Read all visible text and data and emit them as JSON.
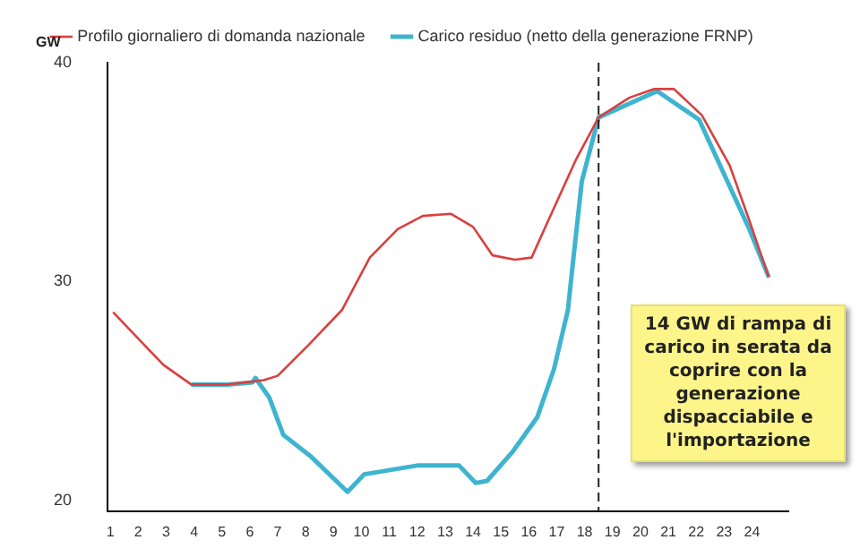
{
  "chart_data": {
    "type": "line",
    "ylabel": "GW",
    "x": [
      1.1,
      2.0,
      2.9,
      3.9,
      5.2,
      6.5,
      7.0,
      8.1,
      9.3,
      10.3,
      11.3,
      12.2,
      13.2,
      14.0,
      14.7,
      15.5,
      16.1,
      16.7,
      17.7,
      18.5,
      19.6,
      20.5,
      21.2,
      22.2,
      23.2,
      23.9,
      24.6
    ],
    "series": [
      {
        "name": "Profilo giornaliero di domanda nazionale",
        "color": "#d9403f",
        "values": [
          28.6,
          27.4,
          26.2,
          25.3,
          25.3,
          25.5,
          25.7,
          27.1,
          28.7,
          31.1,
          32.4,
          33.0,
          33.1,
          32.5,
          31.2,
          31.0,
          31.1,
          32.8,
          35.6,
          37.5,
          38.4,
          38.8,
          38.8,
          37.6,
          35.3,
          32.8,
          30.2
        ]
      },
      {
        "name": "Carico residuo (netto della generazione FRNP)",
        "color": "#3fb4cf",
        "x": [
          3.9,
          5.2,
          6.1,
          6.2,
          6.7,
          7.2,
          8.2,
          9.5,
          9.8,
          10.1,
          12.0,
          13.5,
          14.1,
          14.5,
          15.4,
          16.3,
          16.9,
          17.4,
          17.6,
          17.9,
          18.5,
          20.6,
          22.1,
          23.9,
          24.6
        ],
        "values": [
          25.3,
          25.3,
          25.4,
          25.6,
          24.7,
          23.0,
          22.0,
          20.4,
          20.8,
          21.2,
          21.6,
          21.6,
          20.8,
          20.9,
          22.2,
          23.8,
          26.0,
          28.7,
          31.1,
          34.6,
          37.5,
          38.7,
          37.4,
          32.4,
          30.2
        ]
      }
    ],
    "xlim": [
      0.9,
      25.3
    ],
    "xticks": [
      1,
      2,
      3,
      4,
      5,
      6,
      7,
      8,
      9,
      10,
      11,
      12,
      13,
      14,
      15,
      16,
      17,
      18,
      19,
      20,
      21,
      22,
      23,
      24
    ],
    "ylim": [
      19.5,
      40
    ],
    "yticks": [
      20,
      30,
      40
    ],
    "grid": false,
    "legend": "top",
    "marker": "none",
    "line_style": "solid",
    "ref_lines": [
      {
        "axis": "x",
        "value": 18.5,
        "color": "#222222",
        "line_style": "dashed"
      }
    ],
    "annotations": [
      "14 GW di rampa di carico in serata da coprire con la generazione dispacciabile e l'importazione"
    ]
  }
}
